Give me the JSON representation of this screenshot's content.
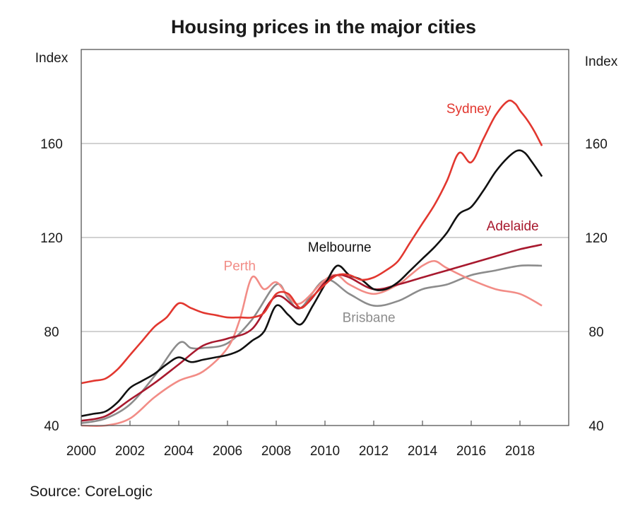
{
  "chart_data": {
    "type": "line",
    "title": "Housing prices in the major cities",
    "ylabel_left": "Index",
    "ylabel_right": "Index",
    "xlim": [
      2000,
      2020
    ],
    "ylim": [
      40,
      200
    ],
    "x_ticks": [
      2000,
      2002,
      2004,
      2006,
      2008,
      2010,
      2012,
      2014,
      2016,
      2018
    ],
    "y_ticks": [
      40,
      80,
      120,
      160
    ],
    "gridlines_y": [
      80,
      120,
      160
    ],
    "source": "Source: CoreLogic",
    "series": [
      {
        "name": "Sydney",
        "color": "#e2372f",
        "x": [
          2000,
          2000.5,
          2001,
          2001.5,
          2002,
          2002.5,
          2003,
          2003.5,
          2004,
          2004.5,
          2005,
          2005.5,
          2006,
          2006.5,
          2007,
          2007.5,
          2008,
          2008.5,
          2009,
          2009.5,
          2010,
          2010.5,
          2011,
          2011.5,
          2012,
          2012.5,
          2013,
          2013.5,
          2014,
          2014.5,
          2015,
          2015.5,
          2016,
          2016.5,
          2017,
          2017.5,
          2017.8,
          2018,
          2018.3,
          2018.6,
          2018.9
        ],
        "values": [
          58,
          59,
          60,
          64,
          70,
          76,
          82,
          86,
          92,
          90,
          88,
          87,
          86,
          86,
          86,
          88,
          96,
          96,
          90,
          95,
          100,
          104,
          104,
          102,
          103,
          106,
          110,
          118,
          126,
          134,
          144,
          156,
          152,
          162,
          172,
          178,
          177,
          174,
          170,
          165,
          159
        ]
      },
      {
        "name": "Melbourne",
        "color": "#111111",
        "x": [
          2000,
          2000.5,
          2001,
          2001.5,
          2002,
          2002.5,
          2003,
          2003.5,
          2004,
          2004.5,
          2005,
          2005.5,
          2006,
          2006.5,
          2007,
          2007.5,
          2008,
          2008.5,
          2009,
          2009.5,
          2010,
          2010.5,
          2011,
          2011.5,
          2012,
          2012.5,
          2013,
          2013.5,
          2014,
          2014.5,
          2015,
          2015.5,
          2016,
          2016.5,
          2017,
          2017.5,
          2017.9,
          2018.2,
          2018.5,
          2018.9
        ],
        "values": [
          44,
          45,
          46,
          50,
          56,
          59,
          62,
          66,
          69,
          67,
          68,
          69,
          70,
          72,
          76,
          80,
          91,
          87,
          83,
          91,
          100,
          108,
          104,
          102,
          98,
          98,
          101,
          106,
          111,
          116,
          122,
          130,
          133,
          140,
          148,
          154,
          157,
          156,
          152,
          146
        ]
      },
      {
        "name": "Adelaide",
        "color": "#a8192e",
        "x": [
          2000,
          2001,
          2002,
          2003,
          2004,
          2005,
          2006,
          2007,
          2008,
          2009,
          2010,
          2010.5,
          2011,
          2012,
          2013,
          2014,
          2015,
          2016,
          2017,
          2018,
          2018.9
        ],
        "values": [
          42,
          44,
          51,
          58,
          66,
          74,
          77,
          81,
          95,
          90,
          101,
          104,
          103,
          98,
          100,
          103,
          106,
          109,
          112,
          115,
          117
        ]
      },
      {
        "name": "Perth",
        "color": "#f28c86",
        "x": [
          2000,
          2001,
          2002,
          2003,
          2004,
          2005,
          2006,
          2006.5,
          2007,
          2007.5,
          2008,
          2008.5,
          2009,
          2010,
          2010.5,
          2011,
          2012,
          2013,
          2013.5,
          2014,
          2014.5,
          2015,
          2016,
          2017,
          2018,
          2018.9
        ],
        "values": [
          40,
          40,
          43,
          52,
          59,
          63,
          73,
          85,
          103,
          98,
          101,
          95,
          92,
          102,
          104,
          100,
          96,
          100,
          104,
          108,
          110,
          107,
          102,
          98,
          96,
          91
        ]
      },
      {
        "name": "Brisbane",
        "color": "#8c8c8c",
        "x": [
          2000,
          2001,
          2002,
          2003,
          2004,
          2004.5,
          2005,
          2006,
          2007,
          2008,
          2008.5,
          2009,
          2010,
          2011,
          2012,
          2013,
          2014,
          2015,
          2016,
          2017,
          2018,
          2018.9
        ],
        "values": [
          41,
          43,
          49,
          61,
          75,
          73,
          73,
          75,
          85,
          100,
          94,
          90,
          102,
          96,
          91,
          93,
          98,
          100,
          104,
          106,
          108,
          108
        ]
      }
    ],
    "labels": [
      {
        "series": "Sydney",
        "text": "Sydney",
        "at": [
          2015.9,
          173
        ]
      },
      {
        "series": "Melbourne",
        "text": "Melbourne",
        "at": [
          2010.6,
          114
        ]
      },
      {
        "series": "Adelaide",
        "text": "Adelaide",
        "at": [
          2017.7,
          123
        ]
      },
      {
        "series": "Perth",
        "text": "Perth",
        "at": [
          2006.5,
          106
        ]
      },
      {
        "series": "Brisbane",
        "text": "Brisbane",
        "at": [
          2011.8,
          84
        ]
      }
    ]
  }
}
